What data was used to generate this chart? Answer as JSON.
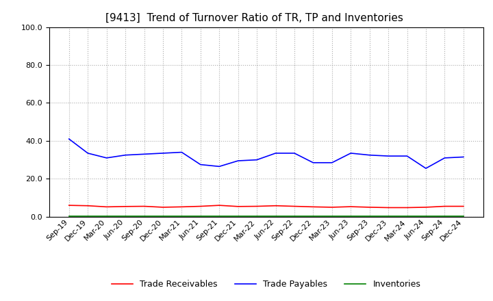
{
  "title": "[9413]  Trend of Turnover Ratio of TR, TP and Inventories",
  "ylim": [
    0.0,
    100.0
  ],
  "yticks": [
    0.0,
    20.0,
    40.0,
    60.0,
    80.0,
    100.0
  ],
  "x_labels": [
    "Sep-19",
    "Dec-19",
    "Mar-20",
    "Jun-20",
    "Sep-20",
    "Dec-20",
    "Mar-21",
    "Jun-21",
    "Sep-21",
    "Dec-21",
    "Mar-22",
    "Jun-22",
    "Sep-22",
    "Dec-22",
    "Mar-23",
    "Jun-23",
    "Sep-23",
    "Dec-23",
    "Mar-24",
    "Jun-24",
    "Sep-24",
    "Dec-24"
  ],
  "trade_receivables": [
    6.0,
    5.8,
    5.2,
    5.4,
    5.5,
    5.0,
    5.2,
    5.5,
    6.0,
    5.4,
    5.5,
    5.8,
    5.5,
    5.2,
    5.0,
    5.3,
    5.0,
    4.8,
    4.8,
    5.0,
    5.5,
    5.5
  ],
  "trade_payables": [
    41.0,
    33.5,
    31.0,
    32.5,
    33.0,
    33.5,
    34.0,
    27.5,
    26.5,
    29.5,
    30.0,
    33.5,
    33.5,
    28.5,
    28.5,
    33.5,
    32.5,
    32.0,
    32.0,
    25.5,
    31.0,
    31.5
  ],
  "inventories": [
    0.3,
    0.3,
    0.3,
    0.3,
    0.3,
    0.3,
    0.3,
    0.3,
    0.3,
    0.3,
    0.3,
    0.3,
    0.3,
    0.3,
    0.3,
    0.3,
    0.3,
    0.3,
    0.3,
    0.3,
    0.3,
    0.3
  ],
  "tr_color": "#ff0000",
  "tp_color": "#0000ff",
  "inv_color": "#008000",
  "tr_label": "Trade Receivables",
  "tp_label": "Trade Payables",
  "inv_label": "Inventories",
  "background_color": "#ffffff",
  "grid_color": "#aaaaaa",
  "title_fontsize": 11,
  "legend_fontsize": 9,
  "tick_fontsize": 8,
  "ytick_fontsize": 8
}
